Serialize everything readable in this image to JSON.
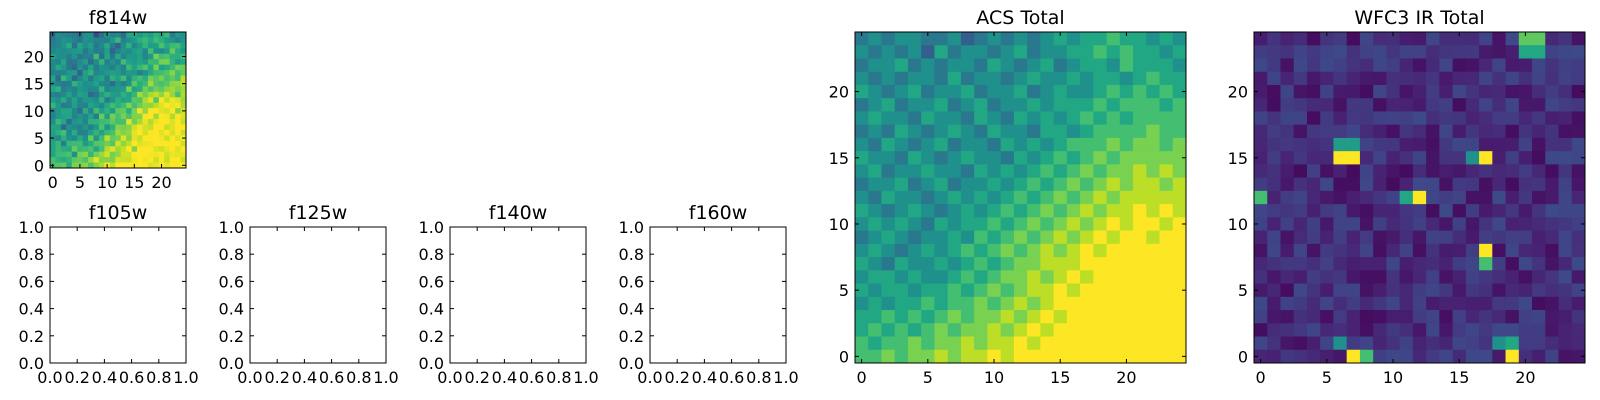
{
  "chart_data": [
    {
      "type": "heatmap",
      "title": "f814w",
      "colormap": "viridis",
      "xlim": [
        -0.5,
        24.5
      ],
      "ylim": [
        -0.5,
        24.5
      ],
      "xticks": [
        0,
        5,
        10,
        15,
        20
      ],
      "yticks": [
        0,
        5,
        10,
        15,
        20
      ],
      "xtick_labels": [
        "0",
        "5",
        "10",
        "15",
        "20"
      ],
      "ytick_labels": [
        "0",
        "5",
        "10",
        "15",
        "20"
      ],
      "grid": false,
      "values_source": "acs_total"
    },
    {
      "type": "heatmap",
      "title": "f105w",
      "xlim": [
        0,
        1
      ],
      "ylim": [
        0,
        1
      ],
      "xticks": [
        0,
        0.2,
        0.4,
        0.6,
        0.8,
        1.0
      ],
      "yticks": [
        0,
        0.2,
        0.4,
        0.6,
        0.8,
        1.0
      ],
      "xtick_labels": [
        "0.0",
        "0.2",
        "0.4",
        "0.6",
        "0.8",
        "1.0"
      ],
      "ytick_labels": [
        "0.0",
        "0.2",
        "0.4",
        "0.6",
        "0.8",
        "1.0"
      ],
      "grid": false,
      "empty": true
    },
    {
      "type": "heatmap",
      "title": "f125w",
      "xlim": [
        0,
        1
      ],
      "ylim": [
        0,
        1
      ],
      "xticks": [
        0,
        0.2,
        0.4,
        0.6,
        0.8,
        1.0
      ],
      "yticks": [
        0,
        0.2,
        0.4,
        0.6,
        0.8,
        1.0
      ],
      "xtick_labels": [
        "0.0",
        "0.2",
        "0.4",
        "0.6",
        "0.8",
        "1.0"
      ],
      "ytick_labels": [
        "0.0",
        "0.2",
        "0.4",
        "0.6",
        "0.8",
        "1.0"
      ],
      "grid": false,
      "empty": true
    },
    {
      "type": "heatmap",
      "title": "f140w",
      "xlim": [
        0,
        1
      ],
      "ylim": [
        0,
        1
      ],
      "xticks": [
        0,
        0.2,
        0.4,
        0.6,
        0.8,
        1.0
      ],
      "yticks": [
        0,
        0.2,
        0.4,
        0.6,
        0.8,
        1.0
      ],
      "xtick_labels": [
        "0.0",
        "0.2",
        "0.4",
        "0.6",
        "0.8",
        "1.0"
      ],
      "ytick_labels": [
        "0.0",
        "0.2",
        "0.4",
        "0.6",
        "0.8",
        "1.0"
      ],
      "grid": false,
      "empty": true
    },
    {
      "type": "heatmap",
      "title": "f160w",
      "xlim": [
        0,
        1
      ],
      "ylim": [
        0,
        1
      ],
      "xticks": [
        0,
        0.2,
        0.4,
        0.6,
        0.8,
        1.0
      ],
      "yticks": [
        0,
        0.2,
        0.4,
        0.6,
        0.8,
        1.0
      ],
      "xtick_labels": [
        "0.0",
        "0.2",
        "0.4",
        "0.6",
        "0.8",
        "1.0"
      ],
      "ytick_labels": [
        "0.0",
        "0.2",
        "0.4",
        "0.6",
        "0.8",
        "1.0"
      ],
      "grid": false,
      "empty": true
    },
    {
      "type": "heatmap",
      "title": "ACS Total",
      "colormap": "viridis",
      "xlim": [
        -0.5,
        24.5
      ],
      "ylim": [
        -0.5,
        24.5
      ],
      "xticks": [
        0,
        5,
        10,
        15,
        20
      ],
      "yticks": [
        0,
        5,
        10,
        15,
        20
      ],
      "xtick_labels": [
        "0",
        "5",
        "10",
        "15",
        "20"
      ],
      "ytick_labels": [
        "0",
        "5",
        "10",
        "15",
        "20"
      ],
      "grid": false,
      "values": [
        [
          0.4,
          0.5,
          0.4,
          0.5,
          0.5,
          0.4,
          0.4,
          0.5,
          0.3,
          0.4,
          0.5,
          0.4,
          0.5,
          0.4,
          0.5,
          0.6,
          0.5,
          0.6,
          0.6,
          0.7,
          0.6,
          0.6,
          0.5,
          0.6,
          0.5
        ],
        [
          0.5,
          0.4,
          0.5,
          0.4,
          0.5,
          0.3,
          0.6,
          0.4,
          0.5,
          0.5,
          0.4,
          0.5,
          0.6,
          0.4,
          0.5,
          0.5,
          0.6,
          0.6,
          0.7,
          0.6,
          0.7,
          0.6,
          0.6,
          0.5,
          0.6
        ],
        [
          0.4,
          0.5,
          0.5,
          0.6,
          0.4,
          0.5,
          0.4,
          0.5,
          0.5,
          0.4,
          0.6,
          0.5,
          0.4,
          0.5,
          0.6,
          0.4,
          0.5,
          0.6,
          0.6,
          0.5,
          0.7,
          0.6,
          0.6,
          0.6,
          0.5
        ],
        [
          0.5,
          0.4,
          0.5,
          0.4,
          0.5,
          0.5,
          0.4,
          0.6,
          0.4,
          0.5,
          0.5,
          0.4,
          0.5,
          0.6,
          0.5,
          0.5,
          0.6,
          0.5,
          0.6,
          0.6,
          0.5,
          0.6,
          0.7,
          0.6,
          0.6
        ],
        [
          0.6,
          0.5,
          0.4,
          0.5,
          0.6,
          0.4,
          0.5,
          0.5,
          0.6,
          0.4,
          0.5,
          0.5,
          0.6,
          0.4,
          0.5,
          0.6,
          0.5,
          0.5,
          0.6,
          0.7,
          0.6,
          0.7,
          0.6,
          0.7,
          0.6
        ],
        [
          0.4,
          0.5,
          0.6,
          0.4,
          0.5,
          0.5,
          0.6,
          0.4,
          0.5,
          0.6,
          0.4,
          0.5,
          0.5,
          0.6,
          0.5,
          0.6,
          0.6,
          0.6,
          0.7,
          0.6,
          0.7,
          0.7,
          0.7,
          0.6,
          0.7
        ],
        [
          0.5,
          0.6,
          0.5,
          0.5,
          0.4,
          0.6,
          0.5,
          0.5,
          0.4,
          0.6,
          0.5,
          0.4,
          0.6,
          0.5,
          0.6,
          0.5,
          0.6,
          0.7,
          0.6,
          0.7,
          0.6,
          0.7,
          0.7,
          0.7,
          0.7
        ],
        [
          0.4,
          0.5,
          0.4,
          0.6,
          0.5,
          0.4,
          0.5,
          0.6,
          0.5,
          0.4,
          0.6,
          0.5,
          0.5,
          0.4,
          0.6,
          0.6,
          0.5,
          0.6,
          0.7,
          0.7,
          0.7,
          0.7,
          0.8,
          0.7,
          0.7
        ],
        [
          0.5,
          0.4,
          0.6,
          0.5,
          0.4,
          0.5,
          0.6,
          0.4,
          0.5,
          0.5,
          0.4,
          0.6,
          0.5,
          0.6,
          0.5,
          0.6,
          0.7,
          0.7,
          0.7,
          0.8,
          0.7,
          0.8,
          0.8,
          0.7,
          0.8
        ],
        [
          0.6,
          0.5,
          0.5,
          0.4,
          0.6,
          0.5,
          0.4,
          0.5,
          0.6,
          0.5,
          0.5,
          0.4,
          0.6,
          0.5,
          0.6,
          0.7,
          0.6,
          0.7,
          0.8,
          0.7,
          0.8,
          0.8,
          0.8,
          0.8,
          0.8
        ],
        [
          0.5,
          0.6,
          0.4,
          0.5,
          0.5,
          0.6,
          0.5,
          0.5,
          0.4,
          0.6,
          0.5,
          0.6,
          0.5,
          0.6,
          0.7,
          0.6,
          0.7,
          0.8,
          0.7,
          0.8,
          0.8,
          0.9,
          0.8,
          0.9,
          0.8
        ],
        [
          0.4,
          0.5,
          0.5,
          0.6,
          0.4,
          0.5,
          0.6,
          0.4,
          0.5,
          0.5,
          0.6,
          0.5,
          0.6,
          0.7,
          0.6,
          0.7,
          0.8,
          0.7,
          0.8,
          0.9,
          0.8,
          0.9,
          0.9,
          0.8,
          0.9
        ],
        [
          0.5,
          0.4,
          0.6,
          0.5,
          0.5,
          0.4,
          0.5,
          0.6,
          0.5,
          0.6,
          0.5,
          0.6,
          0.7,
          0.6,
          0.7,
          0.8,
          0.7,
          0.8,
          0.9,
          0.8,
          0.9,
          0.9,
          0.9,
          0.9,
          0.9
        ],
        [
          0.6,
          0.5,
          0.4,
          0.5,
          0.6,
          0.5,
          0.4,
          0.5,
          0.6,
          0.5,
          0.6,
          0.7,
          0.6,
          0.7,
          0.8,
          0.7,
          0.8,
          0.9,
          0.8,
          0.9,
          0.9,
          1.0,
          0.9,
          1.0,
          0.9
        ],
        [
          0.5,
          0.6,
          0.5,
          0.6,
          0.5,
          0.4,
          0.6,
          0.5,
          0.6,
          0.6,
          0.7,
          0.6,
          0.7,
          0.8,
          0.7,
          0.8,
          0.9,
          0.8,
          0.9,
          1.0,
          0.9,
          1.0,
          1.0,
          0.9,
          1.0
        ],
        [
          0.4,
          0.5,
          0.6,
          0.5,
          0.4,
          0.5,
          0.5,
          0.6,
          0.5,
          0.7,
          0.6,
          0.7,
          0.8,
          0.7,
          0.8,
          0.9,
          0.8,
          0.9,
          1.0,
          0.9,
          1.0,
          1.0,
          0.9,
          1.0,
          1.0
        ],
        [
          0.5,
          0.6,
          0.5,
          0.4,
          0.5,
          0.6,
          0.5,
          0.6,
          0.7,
          0.6,
          0.7,
          0.8,
          0.7,
          0.8,
          0.9,
          0.8,
          0.9,
          1.0,
          0.9,
          1.0,
          1.0,
          1.0,
          1.0,
          1.0,
          1.0
        ],
        [
          0.6,
          0.5,
          0.4,
          0.6,
          0.5,
          0.5,
          0.6,
          0.5,
          0.6,
          0.7,
          0.6,
          0.7,
          0.8,
          0.8,
          0.9,
          0.9,
          0.9,
          1.0,
          1.0,
          1.0,
          1.0,
          1.0,
          1.0,
          1.0,
          1.0
        ],
        [
          0.5,
          0.6,
          0.6,
          0.5,
          0.6,
          0.5,
          0.5,
          0.6,
          0.7,
          0.6,
          0.7,
          0.8,
          0.8,
          0.9,
          0.8,
          0.9,
          1.0,
          0.9,
          1.0,
          1.0,
          1.0,
          1.0,
          1.0,
          1.0,
          1.0
        ],
        [
          0.6,
          0.5,
          0.6,
          0.6,
          0.5,
          0.6,
          0.6,
          0.7,
          0.6,
          0.7,
          0.8,
          0.7,
          0.8,
          0.9,
          0.9,
          1.0,
          0.9,
          1.0,
          1.0,
          1.0,
          1.0,
          1.0,
          1.0,
          1.0,
          1.0
        ],
        [
          0.5,
          0.6,
          0.5,
          0.6,
          0.6,
          0.7,
          0.6,
          0.7,
          0.7,
          0.8,
          0.7,
          0.8,
          0.9,
          0.8,
          0.9,
          1.0,
          1.0,
          1.0,
          1.0,
          1.0,
          1.0,
          1.0,
          1.0,
          1.0,
          1.0
        ],
        [
          0.6,
          0.6,
          0.7,
          0.6,
          0.7,
          0.6,
          0.7,
          0.8,
          0.7,
          0.8,
          0.8,
          0.9,
          0.8,
          0.9,
          1.0,
          0.9,
          1.0,
          1.0,
          1.0,
          1.0,
          1.0,
          1.0,
          1.0,
          1.0,
          1.0
        ],
        [
          0.6,
          0.7,
          0.6,
          0.7,
          0.6,
          0.7,
          0.8,
          0.7,
          0.8,
          0.8,
          0.9,
          0.8,
          0.9,
          1.0,
          0.9,
          1.0,
          1.0,
          1.0,
          1.0,
          1.0,
          1.0,
          1.0,
          1.0,
          1.0,
          1.0
        ],
        [
          0.7,
          0.6,
          0.7,
          0.7,
          0.8,
          0.7,
          0.8,
          0.8,
          0.9,
          0.8,
          0.9,
          0.9,
          1.0,
          0.9,
          1.0,
          1.0,
          1.0,
          1.0,
          1.0,
          1.0,
          1.0,
          1.0,
          1.0,
          1.0,
          1.0
        ],
        [
          0.7,
          0.7,
          0.8,
          0.7,
          0.8,
          0.8,
          0.9,
          0.8,
          0.9,
          0.9,
          1.0,
          0.9,
          1.0,
          1.0,
          1.0,
          1.0,
          1.0,
          1.0,
          1.0,
          1.0,
          1.0,
          1.0,
          1.0,
          1.0,
          1.0
        ]
      ],
      "value_order": "rows from top (y=24) to bottom (y=0), columns x=0..24"
    },
    {
      "type": "heatmap",
      "title": "WFC3 IR Total",
      "colormap": "viridis",
      "xlim": [
        -0.5,
        24.5
      ],
      "ylim": [
        -0.5,
        24.5
      ],
      "xticks": [
        0,
        5,
        10,
        15,
        20
      ],
      "yticks": [
        0,
        5,
        10,
        15,
        20
      ],
      "xtick_labels": [
        "0",
        "5",
        "10",
        "15",
        "20"
      ],
      "ytick_labels": [
        "0",
        "5",
        "10",
        "15",
        "20"
      ],
      "grid": false,
      "background_level": 0.15,
      "hot_pixels": [
        {
          "x": 20,
          "y": 24,
          "v": 0.75
        },
        {
          "x": 21,
          "y": 24,
          "v": 0.75
        },
        {
          "x": 20,
          "y": 23,
          "v": 0.6
        },
        {
          "x": 21,
          "y": 23,
          "v": 0.6
        },
        {
          "x": 6,
          "y": 16,
          "v": 0.55
        },
        {
          "x": 7,
          "y": 16,
          "v": 0.55
        },
        {
          "x": 6,
          "y": 15,
          "v": 1.0
        },
        {
          "x": 7,
          "y": 15,
          "v": 1.0
        },
        {
          "x": 16,
          "y": 15,
          "v": 0.5
        },
        {
          "x": 17,
          "y": 15,
          "v": 1.0
        },
        {
          "x": 0,
          "y": 12,
          "v": 0.7
        },
        {
          "x": 11,
          "y": 12,
          "v": 0.6
        },
        {
          "x": 12,
          "y": 12,
          "v": 1.0
        },
        {
          "x": 17,
          "y": 8,
          "v": 1.0
        },
        {
          "x": 17,
          "y": 7,
          "v": 0.7
        },
        {
          "x": 6,
          "y": 1,
          "v": 0.5
        },
        {
          "x": 7,
          "y": 0,
          "v": 1.0
        },
        {
          "x": 8,
          "y": 0,
          "v": 0.7
        },
        {
          "x": 18,
          "y": 1,
          "v": 0.5
        },
        {
          "x": 19,
          "y": 1,
          "v": 0.6
        },
        {
          "x": 19,
          "y": 0,
          "v": 1.0
        }
      ]
    }
  ]
}
